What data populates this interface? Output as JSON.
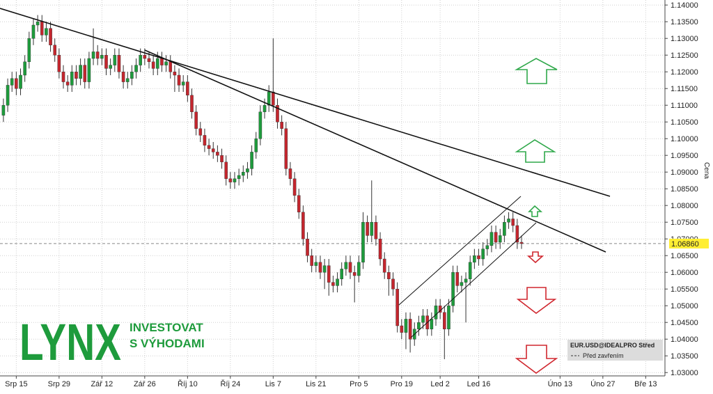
{
  "chart_data": {
    "type": "candlestick",
    "y_axis_label": "Cena",
    "up_color": "#1e9b3c",
    "down_color": "#c4262e",
    "grid": true,
    "ylim": [
      1.029,
      1.1415
    ],
    "yticks": [
      {
        "value": 1.03,
        "label": "1.03000"
      },
      {
        "value": 1.035,
        "label": "1.03500"
      },
      {
        "value": 1.04,
        "label": "1.04000"
      },
      {
        "value": 1.045,
        "label": "1.04500"
      },
      {
        "value": 1.05,
        "label": "1.05000"
      },
      {
        "value": 1.055,
        "label": "1.05500"
      },
      {
        "value": 1.06,
        "label": "1.06000"
      },
      {
        "value": 1.065,
        "label": "1.06500"
      },
      {
        "value": 1.07,
        "label": "1.07000"
      },
      {
        "value": 1.075,
        "label": "1.07500"
      },
      {
        "value": 1.08,
        "label": "1.08000"
      },
      {
        "value": 1.085,
        "label": "1.08500"
      },
      {
        "value": 1.09,
        "label": "1.09000"
      },
      {
        "value": 1.095,
        "label": "1.09500"
      },
      {
        "value": 1.1,
        "label": "1.10000"
      },
      {
        "value": 1.105,
        "label": "1.10500"
      },
      {
        "value": 1.11,
        "label": "1.11000"
      },
      {
        "value": 1.115,
        "label": "1.11500"
      },
      {
        "value": 1.12,
        "label": "1.12000"
      },
      {
        "value": 1.125,
        "label": "1.12500"
      },
      {
        "value": 1.13,
        "label": "1.13000"
      },
      {
        "value": 1.135,
        "label": "1.13500"
      },
      {
        "value": 1.14,
        "label": "1.14000"
      }
    ],
    "xlim": [
      -0.8,
      154.5
    ],
    "xticks": [
      {
        "value": 3,
        "label": "Srp 15"
      },
      {
        "value": 13,
        "label": "Srp 29"
      },
      {
        "value": 23,
        "label": "Zář 12"
      },
      {
        "value": 33,
        "label": "Zář 26"
      },
      {
        "value": 43,
        "label": "Říj 10"
      },
      {
        "value": 53,
        "label": "Říj 24"
      },
      {
        "value": 63,
        "label": "Lis 7"
      },
      {
        "value": 73,
        "label": "Lis 21"
      },
      {
        "value": 83,
        "label": "Pro 5"
      },
      {
        "value": 93,
        "label": "Pro 19"
      },
      {
        "value": 102,
        "label": "Led 2"
      },
      {
        "value": 111,
        "label": "Led 16"
      },
      {
        "value": 130,
        "label": "Úno 13"
      },
      {
        "value": 140,
        "label": "Úno 27"
      },
      {
        "value": 150,
        "label": "Bře 13"
      }
    ],
    "last_price": {
      "value": 1.0686,
      "label": "1.06860"
    },
    "legend": {
      "symbol": "EUR.USD@IDEALPRO Střed",
      "line": "Před zavřením"
    },
    "ohlc": [
      [
        1.107,
        1.112,
        1.105,
        1.11
      ],
      [
        1.11,
        1.118,
        1.108,
        1.116
      ],
      [
        1.116,
        1.12,
        1.114,
        1.118
      ],
      [
        1.118,
        1.12,
        1.113,
        1.115
      ],
      [
        1.115,
        1.121,
        1.113,
        1.119
      ],
      [
        1.119,
        1.125,
        1.117,
        1.123
      ],
      [
        1.123,
        1.132,
        1.121,
        1.13
      ],
      [
        1.13,
        1.136,
        1.128,
        1.134
      ],
      [
        1.134,
        1.137,
        1.132,
        1.135
      ],
      [
        1.135,
        1.137,
        1.129,
        1.131
      ],
      [
        1.131,
        1.135,
        1.129,
        1.133
      ],
      [
        1.133,
        1.135,
        1.126,
        1.128
      ],
      [
        1.128,
        1.13,
        1.123,
        1.125
      ],
      [
        1.125,
        1.127,
        1.118,
        1.12
      ],
      [
        1.12,
        1.122,
        1.115,
        1.117
      ],
      [
        1.117,
        1.119,
        1.114,
        1.116
      ],
      [
        1.116,
        1.122,
        1.114,
        1.12
      ],
      [
        1.12,
        1.122,
        1.116,
        1.118
      ],
      [
        1.118,
        1.124,
        1.116,
        1.122
      ],
      [
        1.122,
        1.124,
        1.115,
        1.117
      ],
      [
        1.117,
        1.126,
        1.115,
        1.124
      ],
      [
        1.124,
        1.133,
        1.122,
        1.126
      ],
      [
        1.126,
        1.128,
        1.122,
        1.124
      ],
      [
        1.124,
        1.127,
        1.122,
        1.125
      ],
      [
        1.125,
        1.127,
        1.119,
        1.121
      ],
      [
        1.121,
        1.124,
        1.119,
        1.122
      ],
      [
        1.122,
        1.127,
        1.12,
        1.125
      ],
      [
        1.125,
        1.127,
        1.118,
        1.12
      ],
      [
        1.12,
        1.122,
        1.115,
        1.117
      ],
      [
        1.117,
        1.12,
        1.115,
        1.118
      ],
      [
        1.118,
        1.122,
        1.116,
        1.12
      ],
      [
        1.12,
        1.124,
        1.118,
        1.122
      ],
      [
        1.122,
        1.127,
        1.12,
        1.125
      ],
      [
        1.125,
        1.127,
        1.122,
        1.124
      ],
      [
        1.124,
        1.126,
        1.121,
        1.123
      ],
      [
        1.123,
        1.125,
        1.119,
        1.121
      ],
      [
        1.121,
        1.126,
        1.119,
        1.124
      ],
      [
        1.124,
        1.126,
        1.12,
        1.122
      ],
      [
        1.122,
        1.125,
        1.12,
        1.123
      ],
      [
        1.123,
        1.125,
        1.118,
        1.12
      ],
      [
        1.12,
        1.122,
        1.114,
        1.119
      ],
      [
        1.119,
        1.121,
        1.114,
        1.116
      ],
      [
        1.116,
        1.119,
        1.114,
        1.117
      ],
      [
        1.117,
        1.119,
        1.111,
        1.113
      ],
      [
        1.113,
        1.115,
        1.106,
        1.108
      ],
      [
        1.108,
        1.11,
        1.101,
        1.103
      ],
      [
        1.103,
        1.105,
        1.099,
        1.101
      ],
      [
        1.101,
        1.103,
        1.096,
        1.098
      ],
      [
        1.098,
        1.1,
        1.095,
        1.097
      ],
      [
        1.097,
        1.099,
        1.094,
        1.096
      ],
      [
        1.096,
        1.098,
        1.093,
        1.095
      ],
      [
        1.095,
        1.097,
        1.091,
        1.093
      ],
      [
        1.093,
        1.095,
        1.086,
        1.088
      ],
      [
        1.088,
        1.09,
        1.085,
        1.087
      ],
      [
        1.087,
        1.09,
        1.085,
        1.088
      ],
      [
        1.088,
        1.091,
        1.086,
        1.089
      ],
      [
        1.089,
        1.092,
        1.087,
        1.09
      ],
      [
        1.09,
        1.093,
        1.088,
        1.091
      ],
      [
        1.091,
        1.098,
        1.089,
        1.096
      ],
      [
        1.096,
        1.102,
        1.094,
        1.1
      ],
      [
        1.1,
        1.11,
        1.098,
        1.108
      ],
      [
        1.108,
        1.112,
        1.106,
        1.11
      ],
      [
        1.11,
        1.116,
        1.108,
        1.114
      ],
      [
        1.114,
        1.13,
        1.108,
        1.11
      ],
      [
        1.11,
        1.112,
        1.103,
        1.105
      ],
      [
        1.105,
        1.107,
        1.101,
        1.103
      ],
      [
        1.103,
        1.105,
        1.089,
        1.091
      ],
      [
        1.091,
        1.093,
        1.086,
        1.088
      ],
      [
        1.088,
        1.09,
        1.081,
        1.083
      ],
      [
        1.083,
        1.085,
        1.076,
        1.078
      ],
      [
        1.078,
        1.08,
        1.068,
        1.07
      ],
      [
        1.07,
        1.072,
        1.063,
        1.065
      ],
      [
        1.065,
        1.067,
        1.06,
        1.062
      ],
      [
        1.062,
        1.065,
        1.06,
        1.063
      ],
      [
        1.063,
        1.065,
        1.058,
        1.06
      ],
      [
        1.06,
        1.064,
        1.055,
        1.062
      ],
      [
        1.062,
        1.064,
        1.053,
        1.057
      ],
      [
        1.057,
        1.059,
        1.054,
        1.056
      ],
      [
        1.056,
        1.06,
        1.054,
        1.058
      ],
      [
        1.058,
        1.063,
        1.056,
        1.061
      ],
      [
        1.061,
        1.065,
        1.059,
        1.063
      ],
      [
        1.063,
        1.065,
        1.058,
        1.06
      ],
      [
        1.06,
        1.062,
        1.051,
        1.059
      ],
      [
        1.059,
        1.065,
        1.057,
        1.063
      ],
      [
        1.063,
        1.078,
        1.061,
        1.075
      ],
      [
        1.075,
        1.077,
        1.069,
        1.071
      ],
      [
        1.071,
        1.0875,
        1.069,
        1.075
      ],
      [
        1.075,
        1.077,
        1.068,
        1.07
      ],
      [
        1.07,
        1.072,
        1.062,
        1.064
      ],
      [
        1.064,
        1.066,
        1.058,
        1.06
      ],
      [
        1.06,
        1.062,
        1.053,
        1.058
      ],
      [
        1.058,
        1.06,
        1.053,
        1.055
      ],
      [
        1.055,
        1.057,
        1.042,
        1.044
      ],
      [
        1.044,
        1.046,
        1.04,
        1.042
      ],
      [
        1.042,
        1.048,
        1.037,
        1.046
      ],
      [
        1.046,
        1.048,
        1.036,
        1.04
      ],
      [
        1.04,
        1.045,
        1.038,
        1.043
      ],
      [
        1.043,
        1.047,
        1.041,
        1.045
      ],
      [
        1.045,
        1.049,
        1.043,
        1.047
      ],
      [
        1.047,
        1.049,
        1.041,
        1.043
      ],
      [
        1.043,
        1.048,
        1.041,
        1.046
      ],
      [
        1.046,
        1.052,
        1.044,
        1.05
      ],
      [
        1.05,
        1.052,
        1.046,
        1.048
      ],
      [
        1.048,
        1.05,
        1.034,
        1.043
      ],
      [
        1.043,
        1.052,
        1.041,
        1.05
      ],
      [
        1.05,
        1.062,
        1.048,
        1.06
      ],
      [
        1.06,
        1.062,
        1.054,
        1.056
      ],
      [
        1.056,
        1.059,
        1.054,
        1.057
      ],
      [
        1.057,
        1.06,
        1.045,
        1.058
      ],
      [
        1.058,
        1.065,
        1.056,
        1.063
      ],
      [
        1.063,
        1.067,
        1.061,
        1.065
      ],
      [
        1.065,
        1.067,
        1.062,
        1.064
      ],
      [
        1.064,
        1.069,
        1.062,
        1.067
      ],
      [
        1.067,
        1.07,
        1.065,
        1.068
      ],
      [
        1.068,
        1.074,
        1.066,
        1.072
      ],
      [
        1.072,
        1.074,
        1.067,
        1.069
      ],
      [
        1.069,
        1.073,
        1.067,
        1.071
      ],
      [
        1.071,
        1.077,
        1.069,
        1.075
      ],
      [
        1.075,
        1.078,
        1.073,
        1.076
      ],
      [
        1.076,
        1.078,
        1.072,
        1.074
      ],
      [
        1.074,
        1.076,
        1.067,
        1.069
      ],
      [
        1.069,
        1.071,
        1.067,
        1.0686
      ]
    ]
  },
  "logo": {
    "name": "LYNX",
    "tagline": [
      "INVESTOVAT",
      "S VÝHODAMI"
    ]
  }
}
